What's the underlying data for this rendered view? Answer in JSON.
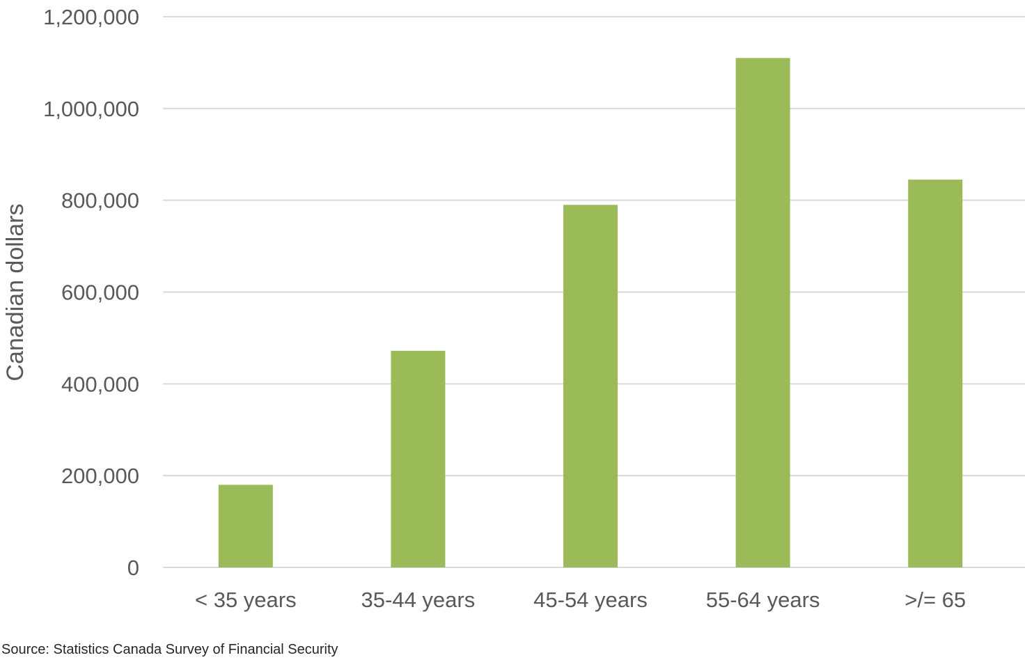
{
  "chart_data": {
    "type": "bar",
    "title": "",
    "xlabel": "",
    "ylabel": "Canadian dollars",
    "categories": [
      "< 35 years",
      "35-44 years",
      "45-54 years",
      "55-64 years",
      ">/= 65"
    ],
    "values": [
      180000,
      472000,
      790000,
      1110000,
      845000
    ],
    "ylim": [
      0,
      1200000
    ],
    "yticks": [
      0,
      200000,
      400000,
      600000,
      800000,
      1000000,
      1200000
    ],
    "ytick_labels": [
      "0",
      "200,000",
      "400,000",
      "600,000",
      "800,000",
      "1,000,000",
      "1,200,000"
    ],
    "grid": true,
    "legend": "none",
    "bar_color": "#9bbb59"
  },
  "source_note": "Source: Statistics Canada Survey of Financial Security"
}
